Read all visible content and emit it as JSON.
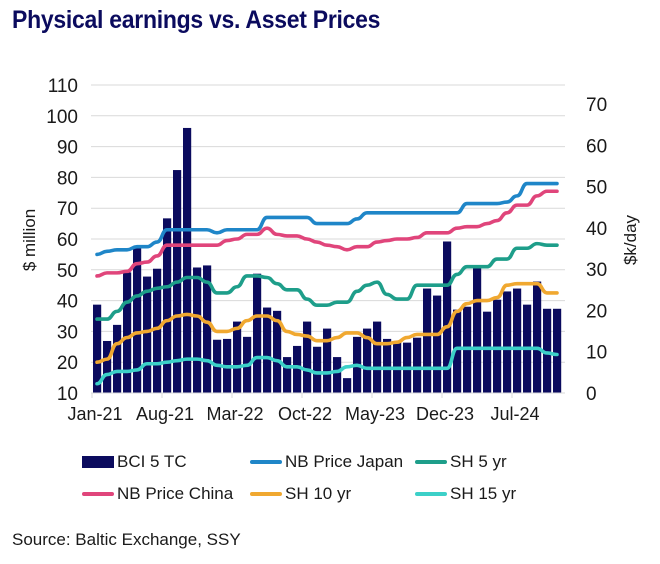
{
  "title": "Physical earnings vs. Asset Prices",
  "source": "Source: Baltic Exchange, SSY",
  "chart_data": {
    "type": "bar",
    "title": "Physical earnings vs. Asset Prices",
    "xlabel": "",
    "ylabel": "$ million",
    "y2label": "$k/day",
    "ylim": [
      10,
      110
    ],
    "y2lim": [
      0,
      70
    ],
    "yticks": [
      "10",
      "20",
      "30",
      "40",
      "50",
      "60",
      "70",
      "80",
      "90",
      "100",
      "110"
    ],
    "y2ticks": [
      "0",
      "10",
      "20",
      "30",
      "40",
      "50",
      "60",
      "70"
    ],
    "grid": true,
    "legend_position": "bottom",
    "x_tick_labels": [
      "Jan-21",
      "Aug-21",
      "Mar-22",
      "Oct-22",
      "May-23",
      "Dec-23",
      "Jul-24"
    ],
    "x_tick_indices": [
      0,
      7,
      14,
      21,
      28,
      35,
      42
    ],
    "categories": [
      "Jan-21",
      "Feb-21",
      "Mar-21",
      "Apr-21",
      "May-21",
      "Jun-21",
      "Jul-21",
      "Aug-21",
      "Sep-21",
      "Oct-21",
      "Nov-21",
      "Dec-21",
      "Jan-22",
      "Feb-22",
      "Mar-22",
      "Apr-22",
      "May-22",
      "Jun-22",
      "Jul-22",
      "Aug-22",
      "Sep-22",
      "Oct-22",
      "Nov-22",
      "Dec-22",
      "Jan-23",
      "Feb-23",
      "Mar-23",
      "Apr-23",
      "May-23",
      "Jun-23",
      "Jul-23",
      "Aug-23",
      "Sep-23",
      "Oct-23",
      "Nov-23",
      "Dec-23",
      "Jan-24",
      "Feb-24",
      "Mar-24",
      "Apr-24",
      "May-24",
      "Jun-24",
      "Jul-24",
      "Aug-24",
      "Sep-24",
      "Oct-24",
      "Nov-24"
    ],
    "series": [
      {
        "name": "BCI 5 TC",
        "kind": "bar",
        "axis": "right",
        "color": "#0b0b5e",
        "values": [
          21.4,
          12.6,
          16.5,
          29.2,
          35,
          28.2,
          30.1,
          42.3,
          54,
          64.2,
          30.4,
          30.9,
          12.9,
          13.1,
          17.3,
          13.6,
          28.9,
          20.7,
          19.9,
          8.7,
          11.4,
          17.3,
          11.2,
          15.6,
          8.7,
          3.6,
          13.6,
          15.6,
          17.3,
          13.1,
          12.2,
          12.2,
          13.4,
          25.3,
          23.6,
          36.7,
          20.2,
          20.9,
          30.6,
          19.7,
          22.6,
          24.6,
          25.3,
          21.4,
          27.0,
          20.4,
          20.4
        ]
      },
      {
        "name": "NB Price Japan",
        "kind": "line",
        "axis": "left",
        "color": "#1f86c8",
        "values": [
          55,
          56,
          56.5,
          56.5,
          57.5,
          57.5,
          59,
          63,
          63,
          63,
          63,
          63,
          62,
          63,
          63,
          63,
          63,
          67,
          67,
          67,
          67,
          67,
          65,
          65,
          65,
          65,
          66.5,
          68.5,
          68.5,
          68.5,
          68.5,
          68.5,
          68.5,
          68.5,
          68.5,
          68.5,
          68.5,
          71.5,
          71.5,
          71.5,
          71.5,
          72,
          74,
          78,
          78,
          78,
          78
        ]
      },
      {
        "name": "NB Price China",
        "kind": "line",
        "axis": "left",
        "color": "#e0457b",
        "values": [
          48,
          49,
          49,
          49.5,
          52,
          52.5,
          54.5,
          58,
          58,
          58,
          58,
          58,
          58,
          59.5,
          60,
          61.5,
          61.5,
          63.5,
          61.5,
          61,
          61,
          60,
          59,
          58,
          57.5,
          56.5,
          57.5,
          57.5,
          59,
          59.5,
          60,
          60,
          60.5,
          62,
          62,
          62,
          63.5,
          64,
          64,
          65,
          66,
          68.5,
          71,
          71,
          74,
          75.5,
          75.5
        ]
      },
      {
        "name": "SH 5 yr",
        "kind": "line",
        "axis": "left",
        "color": "#1e9e8a",
        "values": [
          34,
          34,
          36.5,
          39.5,
          41.5,
          43,
          44,
          44.5,
          46,
          47.5,
          47.5,
          46,
          42.5,
          42.5,
          44.5,
          48,
          48,
          47.5,
          45.5,
          43.5,
          43.5,
          40.5,
          38.5,
          38.5,
          39.5,
          39.5,
          43,
          45,
          46,
          42,
          40.5,
          40.5,
          45,
          45,
          45,
          45,
          48.5,
          51,
          51,
          51,
          53.5,
          53.5,
          57,
          57,
          58.5,
          58,
          58
        ]
      },
      {
        "name": "SH 10 yr",
        "kind": "line",
        "axis": "left",
        "color": "#f0a830",
        "values": [
          20,
          21,
          26,
          28,
          29.5,
          30,
          31,
          33.5,
          35,
          35.5,
          35,
          33,
          30,
          30,
          31,
          33.5,
          35,
          35,
          33.5,
          30,
          29,
          28.5,
          27,
          27,
          28,
          29.5,
          29.5,
          28,
          26,
          26,
          26.5,
          28,
          29,
          29,
          29,
          31.5,
          36.5,
          39,
          40,
          40,
          41,
          45,
          45.5,
          45.5,
          45.5,
          42.5,
          42.5
        ]
      },
      {
        "name": "SH 15 yr",
        "kind": "line",
        "axis": "left",
        "color": "#3cd0c8",
        "values": [
          13,
          16,
          17,
          17,
          17.5,
          19.5,
          19.5,
          20,
          20.5,
          21,
          21,
          20.5,
          19,
          18.5,
          18.5,
          19,
          21.5,
          21.5,
          20.5,
          18.5,
          18.5,
          17.5,
          16.5,
          16.5,
          17,
          18.5,
          19,
          18,
          18,
          18,
          18,
          18,
          18,
          18,
          18,
          18,
          24.5,
          24.5,
          24.5,
          24.5,
          24.5,
          24.5,
          24.5,
          24.5,
          24.5,
          23,
          22.5
        ]
      }
    ]
  },
  "legend": {
    "items": [
      {
        "label": "BCI 5 TC",
        "type": "bar",
        "color": "#0b0b5e"
      },
      {
        "label": "NB Price Japan",
        "type": "line",
        "color": "#1f86c8"
      },
      {
        "label": "SH 5 yr",
        "type": "line",
        "color": "#1e9e8a"
      },
      {
        "label": "NB Price China",
        "type": "line",
        "color": "#e0457b"
      },
      {
        "label": "SH 10 yr",
        "type": "line",
        "color": "#f0a830"
      },
      {
        "label": "SH 15 yr",
        "type": "line",
        "color": "#3cd0c8"
      }
    ]
  }
}
